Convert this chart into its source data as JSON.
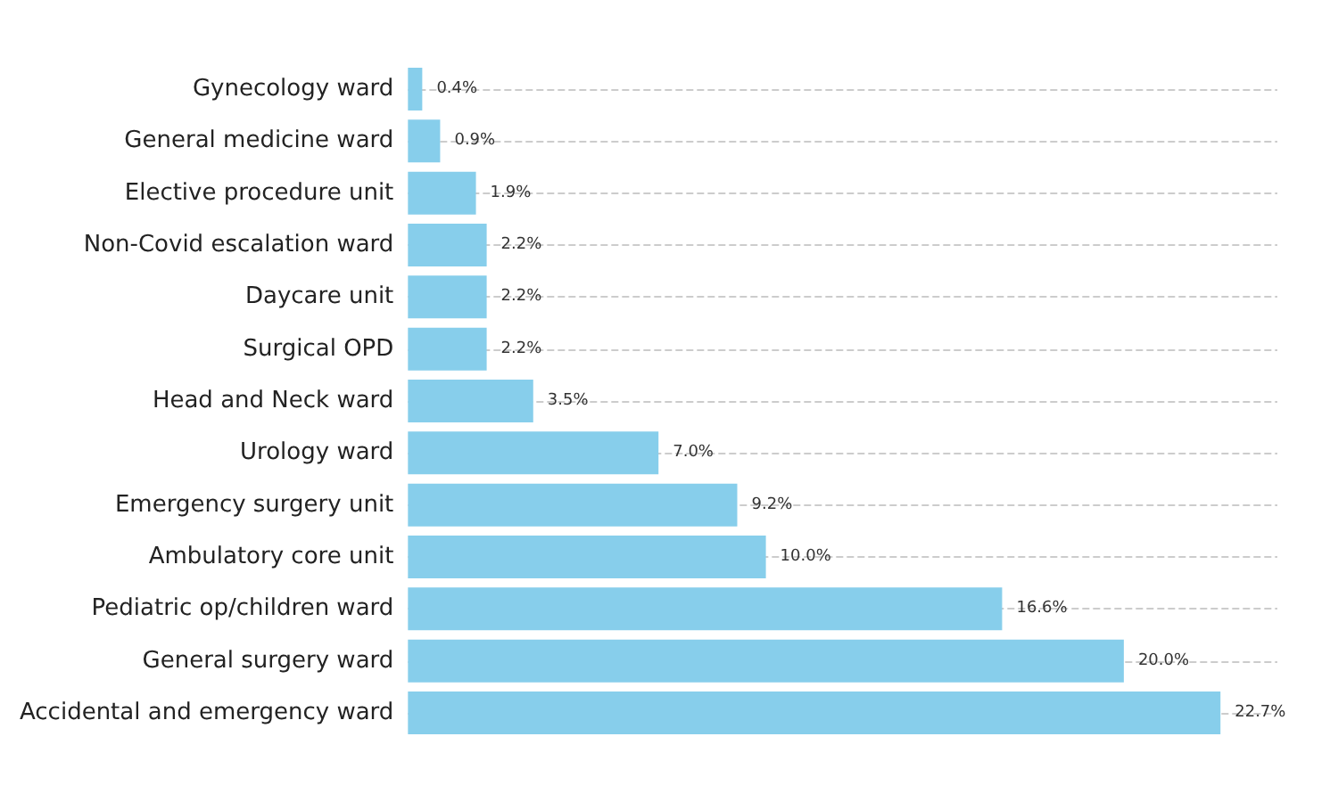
{
  "chart_data": {
    "type": "bar",
    "orientation": "horizontal",
    "categories": [
      "Gynecology ward",
      "General medicine ward",
      "Elective procedure unit",
      "Non-Covid escalation ward",
      "Daycare unit",
      "Surgical OPD",
      "Head and Neck ward",
      "Urology ward",
      "Emergency surgery unit",
      "Ambulatory core unit",
      "Pediatric op/children ward",
      "General surgery ward",
      "Accidental and emergency ward"
    ],
    "values": [
      0.4,
      0.9,
      1.9,
      2.2,
      2.2,
      2.2,
      3.5,
      7.0,
      9.2,
      10.0,
      16.6,
      20.0,
      22.7
    ],
    "value_labels": [
      "0.4%",
      "0.9%",
      "1.9%",
      "2.2%",
      "2.2%",
      "2.2%",
      "3.5%",
      "7.0%",
      "9.2%",
      "10.0%",
      "16.6%",
      "20.0%",
      "22.7%"
    ],
    "color": "#87ceeb",
    "grid": "y"
  }
}
